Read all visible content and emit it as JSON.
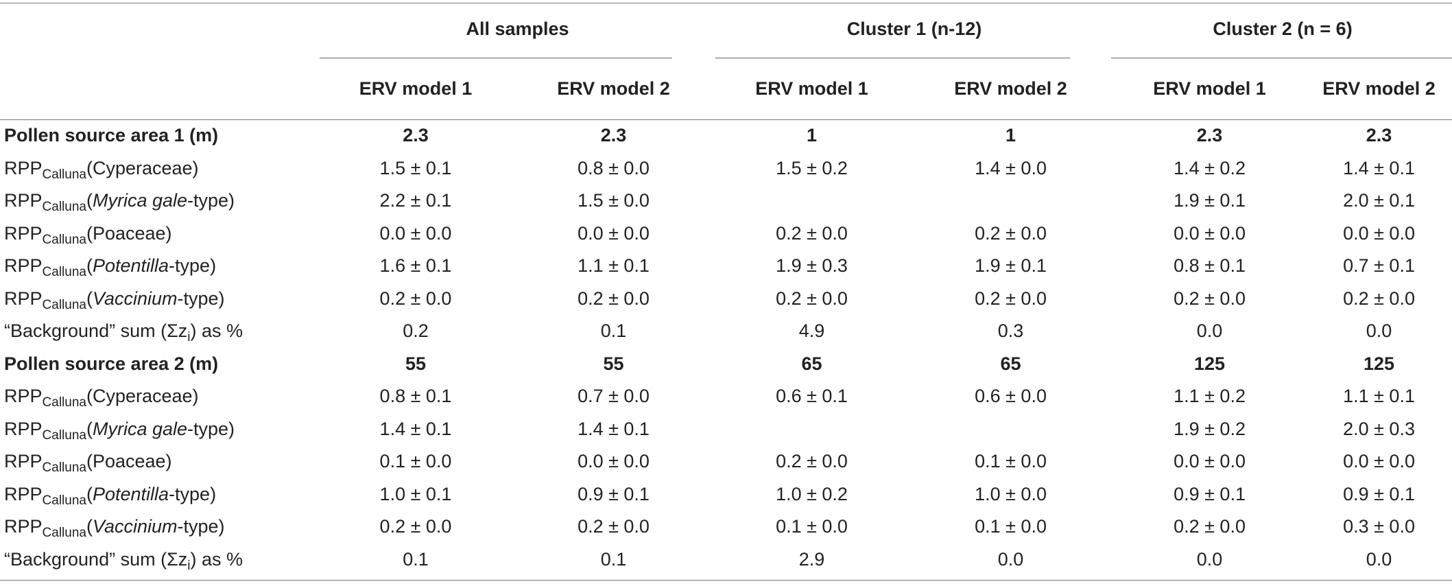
{
  "groups": [
    "All samples",
    "Cluster 1 (n-12)",
    "Cluster 2 (n = 6)"
  ],
  "subheaders": [
    "ERV model 1",
    "ERV model 2",
    "ERV model 1",
    "ERV model 2",
    "ERV model 1",
    "ERV model 2"
  ],
  "rows": [
    {
      "label_plain": "Pollen source area 1 (m)",
      "bold": true,
      "values": [
        "2.3",
        "2.3",
        "1",
        "1",
        "2.3",
        "2.3"
      ]
    },
    {
      "prefix": "RPP",
      "sub": "Calluna",
      "taxon": "(Cyperaceae)",
      "values": [
        "1.5 ± 0.1",
        "0.8 ± 0.0",
        "1.5 ± 0.2",
        "1.4 ± 0.0",
        "1.4 ± 0.2",
        "1.4 ± 0.1"
      ]
    },
    {
      "prefix": "RPP",
      "sub": "Calluna",
      "taxon_open": "(",
      "taxon_italic": "Myrica gale",
      "taxon_close": "-type)",
      "values": [
        "2.2 ± 0.1",
        "1.5 ± 0.0",
        "",
        "",
        "1.9 ± 0.1",
        "2.0 ± 0.1"
      ]
    },
    {
      "prefix": "RPP",
      "sub": "Calluna",
      "taxon": "(Poaceae)",
      "values": [
        "0.0 ± 0.0",
        "0.0 ± 0.0",
        "0.2 ± 0.0",
        "0.2 ± 0.0",
        "0.0 ± 0.0",
        "0.0 ± 0.0"
      ]
    },
    {
      "prefix": "RPP",
      "sub": "Calluna",
      "taxon_open": "(",
      "taxon_italic": "Potentilla",
      "taxon_close": "-type)",
      "values": [
        "1.6 ± 0.1",
        "1.1 ± 0.1",
        "1.9 ± 0.3",
        "1.9 ± 0.1",
        "0.8 ± 0.1",
        "0.7 ± 0.1"
      ]
    },
    {
      "prefix": "RPP",
      "sub": "Calluna",
      "taxon_open": "(",
      "taxon_italic": "Vaccinium",
      "taxon_close": "-type)",
      "values": [
        "0.2 ± 0.0",
        "0.2 ± 0.0",
        "0.2 ± 0.0",
        "0.2 ± 0.0",
        "0.2 ± 0.0",
        "0.2 ± 0.0"
      ]
    },
    {
      "bg_pre": "“Background” sum (Σz",
      "bg_sub": "i",
      "bg_post": ") as %",
      "values": [
        "0.2",
        "0.1",
        "4.9",
        "0.3",
        "0.0",
        "0.0"
      ]
    },
    {
      "label_plain": "Pollen source area 2 (m)",
      "bold": true,
      "values": [
        "55",
        "55",
        "65",
        "65",
        "125",
        "125"
      ]
    },
    {
      "prefix": "RPP",
      "sub": "Calluna",
      "taxon": "(Cyperaceae)",
      "values": [
        "0.8 ± 0.1",
        "0.7 ± 0.0",
        "0.6 ± 0.1",
        "0.6 ± 0.0",
        "1.1 ± 0.2",
        "1.1 ± 0.1"
      ]
    },
    {
      "prefix": "RPP",
      "sub": "Calluna",
      "taxon_open": "(",
      "taxon_italic": "Myrica gale",
      "taxon_close": "-type)",
      "values": [
        "1.4 ± 0.1",
        "1.4 ± 0.1",
        "",
        "",
        "1.9 ± 0.2",
        "2.0 ± 0.3"
      ]
    },
    {
      "prefix": "RPP",
      "sub": "Calluna",
      "taxon": "(Poaceae)",
      "values": [
        "0.1 ± 0.0",
        "0.0 ± 0.0",
        "0.2 ± 0.0",
        "0.1 ± 0.0",
        "0.0 ± 0.0",
        "0.0 ± 0.0"
      ]
    },
    {
      "prefix": "RPP",
      "sub": "Calluna",
      "taxon_open": "(",
      "taxon_italic": "Potentilla",
      "taxon_close": "-type)",
      "values": [
        "1.0 ± 0.1",
        "0.9 ± 0.1",
        "1.0 ± 0.2",
        "1.0 ± 0.0",
        "0.9 ± 0.1",
        "0.9 ± 0.1"
      ]
    },
    {
      "prefix": "RPP",
      "sub": "Calluna",
      "taxon_open": "(",
      "taxon_italic": "Vaccinium",
      "taxon_close": "-type)",
      "values": [
        "0.2 ± 0.0",
        "0.2 ± 0.0",
        "0.1 ± 0.0",
        "0.1 ± 0.0",
        "0.2 ± 0.0",
        "0.3 ± 0.0"
      ]
    },
    {
      "bg_pre": "“Background” sum (Σz",
      "bg_sub": "i",
      "bg_post": ") as %",
      "values": [
        "0.1",
        "0.1",
        "2.9",
        "0.0",
        "0.0",
        "0.0"
      ]
    }
  ]
}
